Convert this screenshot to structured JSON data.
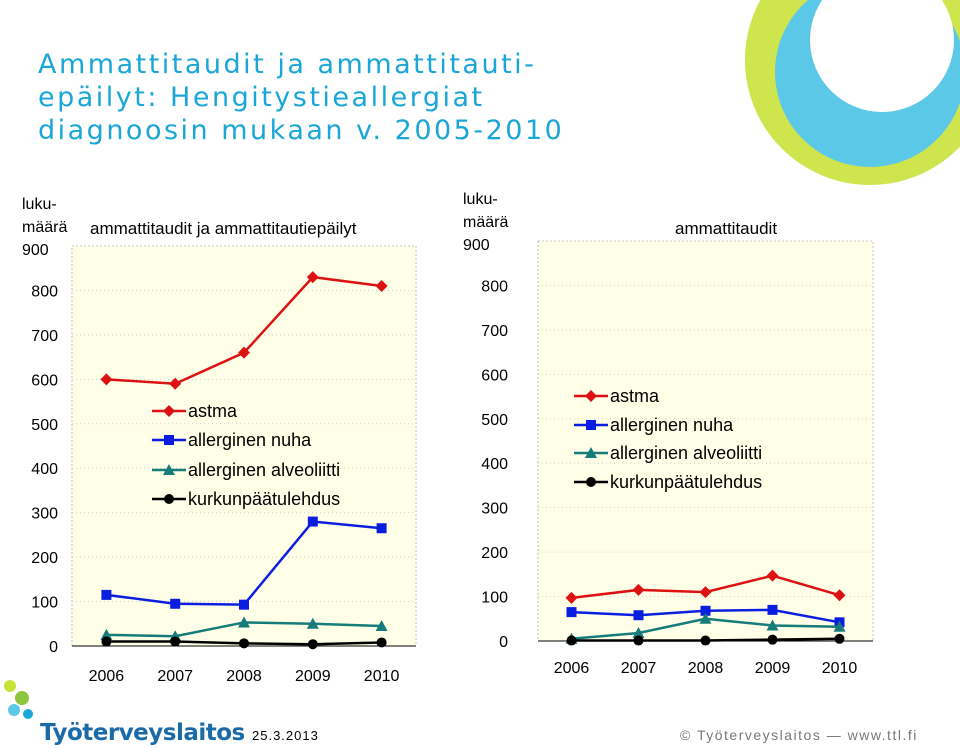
{
  "title": {
    "lines": [
      "Ammattitaudit ja ammattitauti-",
      "epäilyt: Hengitystieallergiat",
      "diagnoosin mukaan v. 2005-2010"
    ]
  },
  "footer": {
    "date": "25.3.2013",
    "copyright": "© Työterveyslaitos  —  www.ttl.fi",
    "logo_text": "Työterveyslaitos"
  },
  "colors": {
    "astma": "#dd1111",
    "allerginen_nuha": "#0a1ee0",
    "allerginen_alveoliitti": "#167b7b",
    "kurkunpaatulehdus": "#000000",
    "plot_background": "#ffffe8",
    "title": "#1aa6d6",
    "deco_green": "#c9e23a",
    "deco_cyan": "#5cc8e8"
  },
  "chart_data": [
    {
      "type": "line",
      "title": "ammattitaudit ja ammattitautiepäilyt",
      "ylabel_lines": [
        "luku-",
        "määrä"
      ],
      "categories": [
        "2006",
        "2007",
        "2008",
        "2009",
        "2010"
      ],
      "yticks": [
        "0",
        "100",
        "200",
        "300",
        "400",
        "500",
        "600",
        "700",
        "800",
        "900"
      ],
      "ylim": [
        0,
        900
      ],
      "legend_position": "center",
      "series": [
        {
          "name": "astma",
          "marker": "diamond",
          "values": [
            600,
            590,
            660,
            830,
            810
          ]
        },
        {
          "name": "allerginen nuha",
          "marker": "square",
          "values": [
            115,
            95,
            93,
            280,
            265
          ]
        },
        {
          "name": "allerginen alveoliitti",
          "marker": "triangle",
          "values": [
            25,
            22,
            53,
            50,
            45
          ]
        },
        {
          "name": "kurkunpäätulehdus",
          "marker": "circle",
          "values": [
            10,
            10,
            6,
            4,
            8
          ]
        }
      ]
    },
    {
      "type": "line",
      "title": "ammattitaudit",
      "ylabel_lines": [
        "luku-",
        "määrä"
      ],
      "categories": [
        "2006",
        "2007",
        "2008",
        "2009",
        "2010"
      ],
      "yticks": [
        "0",
        "100",
        "200",
        "300",
        "400",
        "500",
        "600",
        "700",
        "800",
        "900"
      ],
      "ylim": [
        0,
        900
      ],
      "legend_position": "top-right",
      "series": [
        {
          "name": "astma",
          "marker": "diamond",
          "values": [
            97,
            115,
            110,
            147,
            103
          ]
        },
        {
          "name": "allerginen nuha",
          "marker": "square",
          "values": [
            65,
            58,
            68,
            70,
            42
          ]
        },
        {
          "name": "allerginen alveoliitti",
          "marker": "triangle",
          "values": [
            5,
            18,
            50,
            35,
            32
          ]
        },
        {
          "name": "kurkunpäätulehdus",
          "marker": "circle",
          "values": [
            1,
            1,
            1,
            3,
            5
          ]
        }
      ]
    }
  ]
}
